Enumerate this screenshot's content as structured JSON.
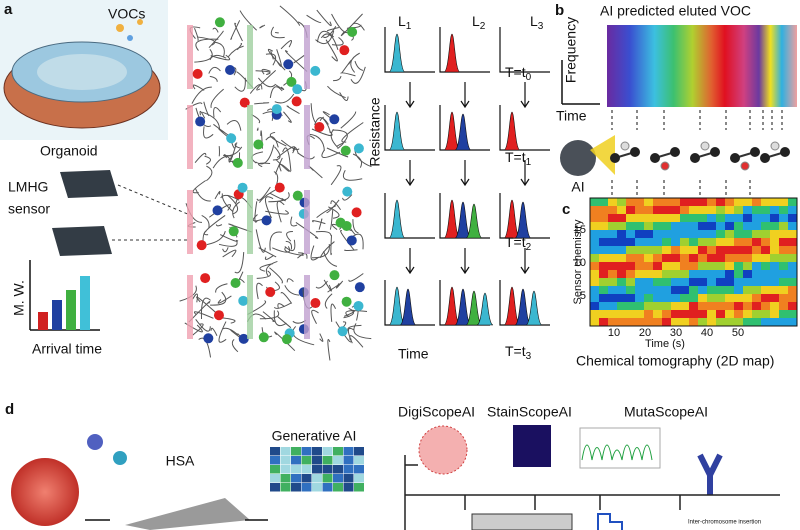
{
  "panel_a": {
    "label": "a",
    "vocs": "VOCs",
    "organoid": "Organoid",
    "sensor": [
      "LMHG",
      "sensor"
    ],
    "mw": "M. W.",
    "arrival_time": "Arrival time",
    "lanes": [
      {
        "name": "L",
        "sub": "1"
      },
      {
        "name": "L",
        "sub": "2"
      },
      {
        "name": "L",
        "sub": "3"
      }
    ],
    "resistance": "Resistance",
    "times": [
      {
        "text": "T=t",
        "sub": "0"
      },
      {
        "text": "T=t",
        "sub": "1"
      },
      {
        "text": "T=t",
        "sub": "2"
      },
      {
        "text": "T=t",
        "sub": "3"
      }
    ],
    "time": "Time"
  },
  "panel_b": {
    "label": "b",
    "title": "AI predicted eluted VOC",
    "y_label": "Frequency",
    "x_label": "Time",
    "ai": "AI"
  },
  "panel_c": {
    "label": "c",
    "y_label": "Sensor chemistry",
    "x_label": "Time (s)",
    "y_ticks": [
      15,
      10,
      5
    ],
    "x_ticks": [
      10,
      20,
      30,
      40,
      50
    ],
    "caption": "Chemical tomography (2D map)"
  },
  "panel_d": {
    "label": "d",
    "hsa": "HSA",
    "generative_ai": "Generative AI",
    "tools": [
      "DigiScopeAI",
      "StainScopeAI",
      "MutaScopeAI"
    ],
    "insertion": "Inter-chromosome insertion"
  }
}
